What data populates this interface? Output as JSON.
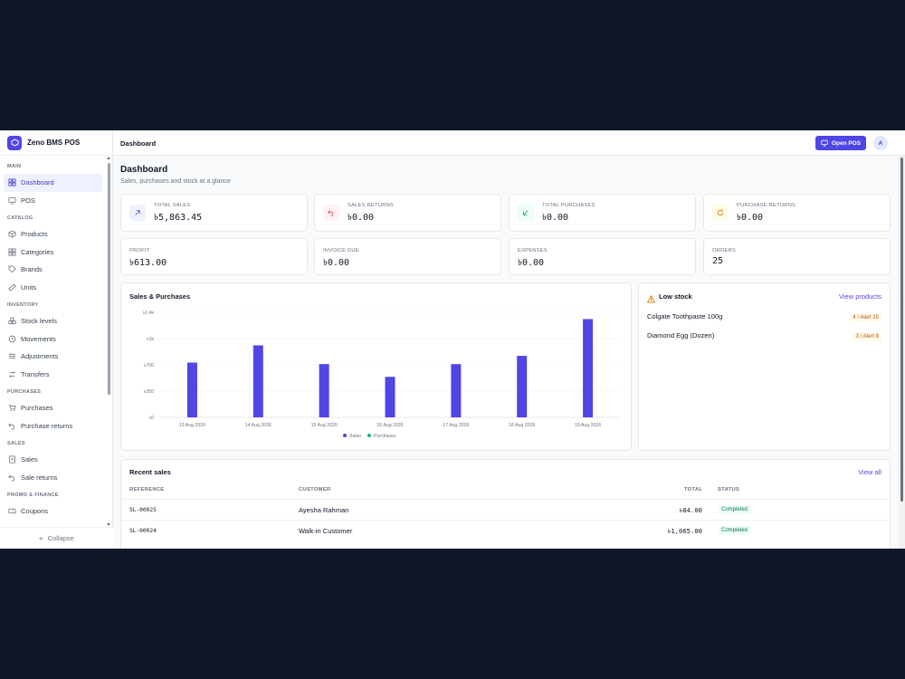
{
  "brand": {
    "name": "Zeno BMS POS"
  },
  "sidebar": {
    "sections": [
      {
        "title": "MAIN",
        "items": [
          {
            "label": "Dashboard",
            "icon": "grid-icon",
            "active": true
          },
          {
            "label": "POS",
            "icon": "monitor-icon"
          }
        ]
      },
      {
        "title": "CATALOG",
        "items": [
          {
            "label": "Products",
            "icon": "box-icon"
          },
          {
            "label": "Categories",
            "icon": "grid-icon"
          },
          {
            "label": "Brands",
            "icon": "tag-icon"
          },
          {
            "label": "Units",
            "icon": "ruler-icon"
          }
        ]
      },
      {
        "title": "INVENTORY",
        "items": [
          {
            "label": "Stock levels",
            "icon": "boxes-icon"
          },
          {
            "label": "Movements",
            "icon": "history-icon"
          },
          {
            "label": "Adjustments",
            "icon": "sliders-icon"
          },
          {
            "label": "Transfers",
            "icon": "transfer-icon"
          }
        ]
      },
      {
        "title": "PURCHASES",
        "items": [
          {
            "label": "Purchases",
            "icon": "cart-icon"
          },
          {
            "label": "Purchase returns",
            "icon": "undo-icon"
          }
        ]
      },
      {
        "title": "SALES",
        "items": [
          {
            "label": "Sales",
            "icon": "receipt-icon"
          },
          {
            "label": "Sale returns",
            "icon": "undo-icon"
          }
        ]
      },
      {
        "title": "PROMO & FINANCE",
        "items": [
          {
            "label": "Coupons",
            "icon": "ticket-icon"
          }
        ]
      }
    ],
    "collapse_label": "Collapse"
  },
  "topbar": {
    "breadcrumb": "Dashboard",
    "open_pos_label": "Open POS",
    "avatar_initial": "A"
  },
  "page": {
    "title": "Dashboard",
    "subtitle": "Sales, purchases and stock at a glance"
  },
  "stats_top": [
    {
      "label": "TOTAL SALES",
      "value": "৳5,863.45",
      "icon": "arrow-up-right-icon",
      "bg": "#eef2ff",
      "color": "#4f46e5"
    },
    {
      "label": "SALES RETURNS",
      "value": "৳0.00",
      "icon": "undo-icon",
      "bg": "#fef2f2",
      "color": "#dc2626"
    },
    {
      "label": "TOTAL PURCHASES",
      "value": "৳0.00",
      "icon": "arrow-down-left-icon",
      "bg": "#ecfdf5",
      "color": "#059669"
    },
    {
      "label": "PURCHASE RETURNS",
      "value": "৳0.00",
      "icon": "rotate-icon",
      "bg": "#fffbeb",
      "color": "#d97706"
    }
  ],
  "stats_bottom": [
    {
      "label": "PROFIT",
      "value": "৳613.00"
    },
    {
      "label": "INVOICE DUE",
      "value": "৳0.00"
    },
    {
      "label": "EXPENSES",
      "value": "৳0.00"
    },
    {
      "label": "ORDERS",
      "value": "25"
    }
  ],
  "chart_card": {
    "title": "Sales & Purchases"
  },
  "chart_data": {
    "type": "bar",
    "categories": [
      "13 Aug 2026",
      "14 Aug 2026",
      "15 Aug 2026",
      "16 Aug 2026",
      "17 Aug 2026",
      "18 Aug 2026",
      "19 Aug 2026"
    ],
    "series": [
      {
        "name": "Sales",
        "color": "#4f46e5",
        "values": [
          730,
          960,
          710,
          540,
          710,
          820,
          1310
        ]
      },
      {
        "name": "Purchases",
        "color": "#10b981",
        "values": [
          0,
          0,
          0,
          0,
          0,
          0,
          0
        ]
      }
    ],
    "yticks": [
      0,
      350,
      700,
      1050,
      1400
    ],
    "ytick_labels": [
      "৳0",
      "৳350",
      "৳700",
      "৳1k",
      "৳1.4k"
    ],
    "ylim": [
      0,
      1400
    ],
    "legend": "bottom",
    "grid": true
  },
  "low_stock": {
    "title": "Low stock",
    "link": "View products",
    "items": [
      {
        "name": "Colgate Toothpaste 100g",
        "badge": "4 / Alert 15"
      },
      {
        "name": "Diamond Egg (Dozen)",
        "badge": "3 / Alert 8"
      }
    ]
  },
  "recent_sales": {
    "title": "Recent sales",
    "link": "View all",
    "columns": [
      "REFERENCE",
      "CUSTOMER",
      "TOTAL",
      "STATUS"
    ],
    "rows": [
      {
        "ref": "SL-00025",
        "customer": "Ayesha Rahman",
        "total": "৳84.00",
        "status": "Completed"
      },
      {
        "ref": "SL-00024",
        "customer": "Walk-in Customer",
        "total": "৳1,065.00",
        "status": "Completed"
      }
    ]
  }
}
